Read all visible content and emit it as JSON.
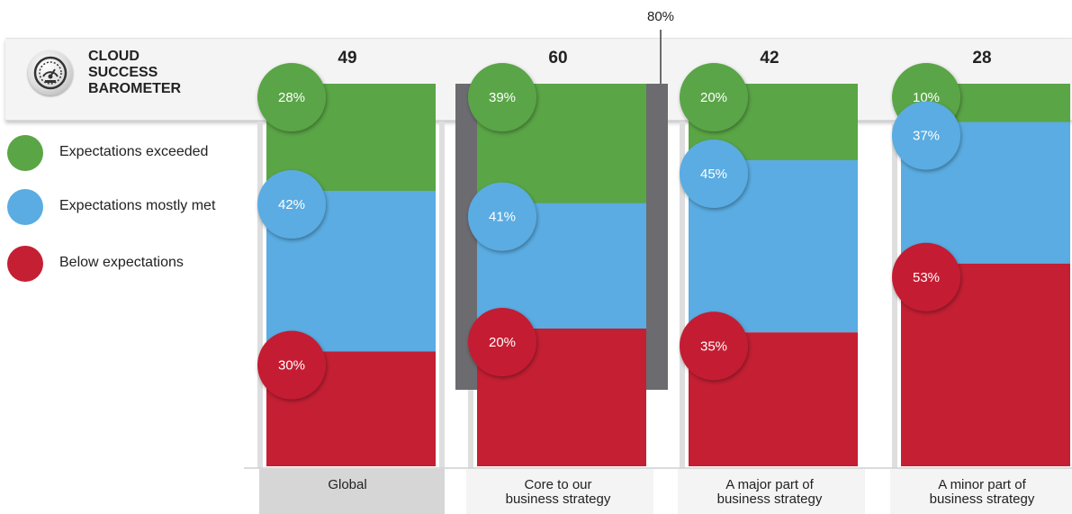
{
  "brand": {
    "title_lines": [
      "CLOUD",
      "SUCCESS",
      "BAROMETER"
    ],
    "logo_icon": "gauge-dial-icon"
  },
  "legend": [
    {
      "label": "Expectations exceeded",
      "color": "#5aa546"
    },
    {
      "label": "Expectations mostly met",
      "color": "#5aace2"
    },
    {
      "label": "Below expectations",
      "color": "#c41f33"
    }
  ],
  "chart_data": {
    "type": "bar",
    "stacked": true,
    "unit": "%",
    "categories": [
      "Global",
      "Core to our business strategy",
      "A major part of business strategy",
      "A minor part of business strategy"
    ],
    "category_label_lines": [
      [
        "Global"
      ],
      [
        "Core to our",
        "business strategy"
      ],
      [
        "A major part of",
        "business strategy"
      ],
      [
        "A minor part of",
        "business strategy"
      ]
    ],
    "counts": [
      49,
      60,
      42,
      28
    ],
    "series": [
      {
        "name": "Expectations exceeded",
        "color": "#5aa546",
        "values": [
          28,
          39,
          20,
          10
        ]
      },
      {
        "name": "Expectations mostly met",
        "color": "#5aace2",
        "values": [
          42,
          41,
          45,
          37
        ]
      },
      {
        "name": "Below expectations",
        "color": "#c41f33",
        "values": [
          30,
          20,
          35,
          53
        ]
      }
    ],
    "highlight": {
      "category_index": 1,
      "marker_value": 80,
      "marker_label": "80%"
    },
    "ylim": [
      0,
      100
    ]
  }
}
